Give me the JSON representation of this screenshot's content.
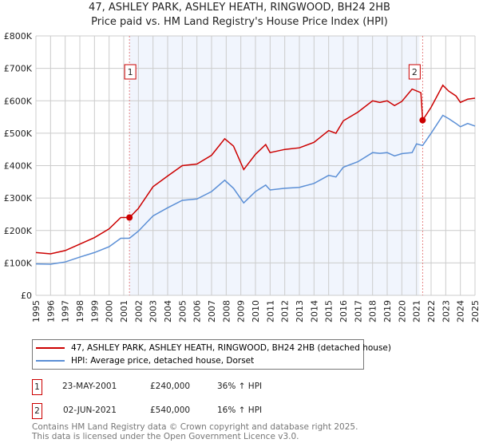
{
  "chart_data": {
    "type": "line",
    "title": "47, ASHLEY PARK, ASHLEY HEATH, RINGWOOD, BH24 2HB",
    "subtitle": "Price paid vs. HM Land Registry's House Price Index (HPI)",
    "xlabel": "",
    "ylabel": "",
    "xlim": [
      1995,
      2025
    ],
    "ylim": [
      0,
      800000
    ],
    "grid": true,
    "y_ticks": [
      {
        "v": 0,
        "label": "£0"
      },
      {
        "v": 100000,
        "label": "£100K"
      },
      {
        "v": 200000,
        "label": "£200K"
      },
      {
        "v": 300000,
        "label": "£300K"
      },
      {
        "v": 400000,
        "label": "£400K"
      },
      {
        "v": 500000,
        "label": "£500K"
      },
      {
        "v": 600000,
        "label": "£600K"
      },
      {
        "v": 700000,
        "label": "£700K"
      },
      {
        "v": 800000,
        "label": "£800K"
      }
    ],
    "x_ticks": [
      "1995",
      "1996",
      "1997",
      "1998",
      "1999",
      "2000",
      "2001",
      "2002",
      "2003",
      "2004",
      "2005",
      "2006",
      "2007",
      "2008",
      "2009",
      "2010",
      "2011",
      "2012",
      "2013",
      "2014",
      "2015",
      "2016",
      "2017",
      "2018",
      "2019",
      "2020",
      "2021",
      "2022",
      "2023",
      "2024",
      "2025"
    ],
    "shaded_range": [
      2001.39,
      2021.2
    ],
    "series": [
      {
        "name": "47, ASHLEY PARK, ASHLEY HEATH, RINGWOOD, BH24 2HB (detached house)",
        "color": "#cc0000",
        "x": [
          1995,
          1996,
          1997,
          1998,
          1999,
          2000,
          2000.8,
          2001.39,
          2002,
          2003,
          2004,
          2005,
          2006,
          2007,
          2007.9,
          2008.5,
          2009.2,
          2010,
          2010.7,
          2011,
          2012,
          2013,
          2014,
          2015,
          2015.5,
          2016,
          2017,
          2018,
          2018.5,
          2019,
          2019.5,
          2020,
          2020.7,
          2021.3,
          2021.42,
          2022,
          2022.8,
          2023.2,
          2023.7,
          2024,
          2024.5,
          2025
        ],
        "y": [
          132000,
          128000,
          138000,
          158000,
          178000,
          205000,
          240000,
          240000,
          268000,
          335000,
          368000,
          400000,
          405000,
          432000,
          483000,
          460000,
          388000,
          435000,
          465000,
          440000,
          450000,
          455000,
          472000,
          508000,
          500000,
          538000,
          565000,
          600000,
          595000,
          600000,
          585000,
          598000,
          636000,
          625000,
          540000,
          580000,
          648000,
          630000,
          615000,
          595000,
          605000,
          608000
        ]
      },
      {
        "name": "HPI: Average price, detached house, Dorset",
        "color": "#5b8fd6",
        "x": [
          1995,
          1996,
          1997,
          1998,
          1999,
          2000,
          2000.8,
          2001.39,
          2002,
          2003,
          2004,
          2005,
          2006,
          2007,
          2007.9,
          2008.5,
          2009.2,
          2010,
          2010.7,
          2011,
          2012,
          2013,
          2014,
          2015,
          2015.5,
          2016,
          2017,
          2018,
          2018.5,
          2019,
          2019.5,
          2020,
          2020.7,
          2021,
          2021.42,
          2022,
          2022.8,
          2023.2,
          2023.7,
          2024,
          2024.5,
          2025
        ],
        "y": [
          97000,
          96000,
          103000,
          118000,
          132000,
          150000,
          176000,
          176000,
          198000,
          245000,
          270000,
          293000,
          297000,
          320000,
          355000,
          330000,
          285000,
          320000,
          340000,
          325000,
          330000,
          333000,
          345000,
          370000,
          365000,
          395000,
          412000,
          440000,
          438000,
          440000,
          430000,
          437000,
          440000,
          467000,
          462000,
          500000,
          555000,
          545000,
          530000,
          520000,
          530000,
          522000
        ]
      }
    ],
    "sales": [
      {
        "id": "1",
        "x": 2001.39,
        "y": 240000,
        "date": "23-MAY-2001",
        "price": "£240,000",
        "hpi": "36% ↑ HPI"
      },
      {
        "id": "2",
        "x": 2021.42,
        "y": 540000,
        "date": "02-JUN-2021",
        "price": "£540,000",
        "hpi": "16% ↑ HPI"
      }
    ]
  },
  "footer": {
    "line1": "Contains HM Land Registry data © Crown copyright and database right 2025.",
    "line2": "This data is licensed under the Open Government Licence v3.0."
  }
}
